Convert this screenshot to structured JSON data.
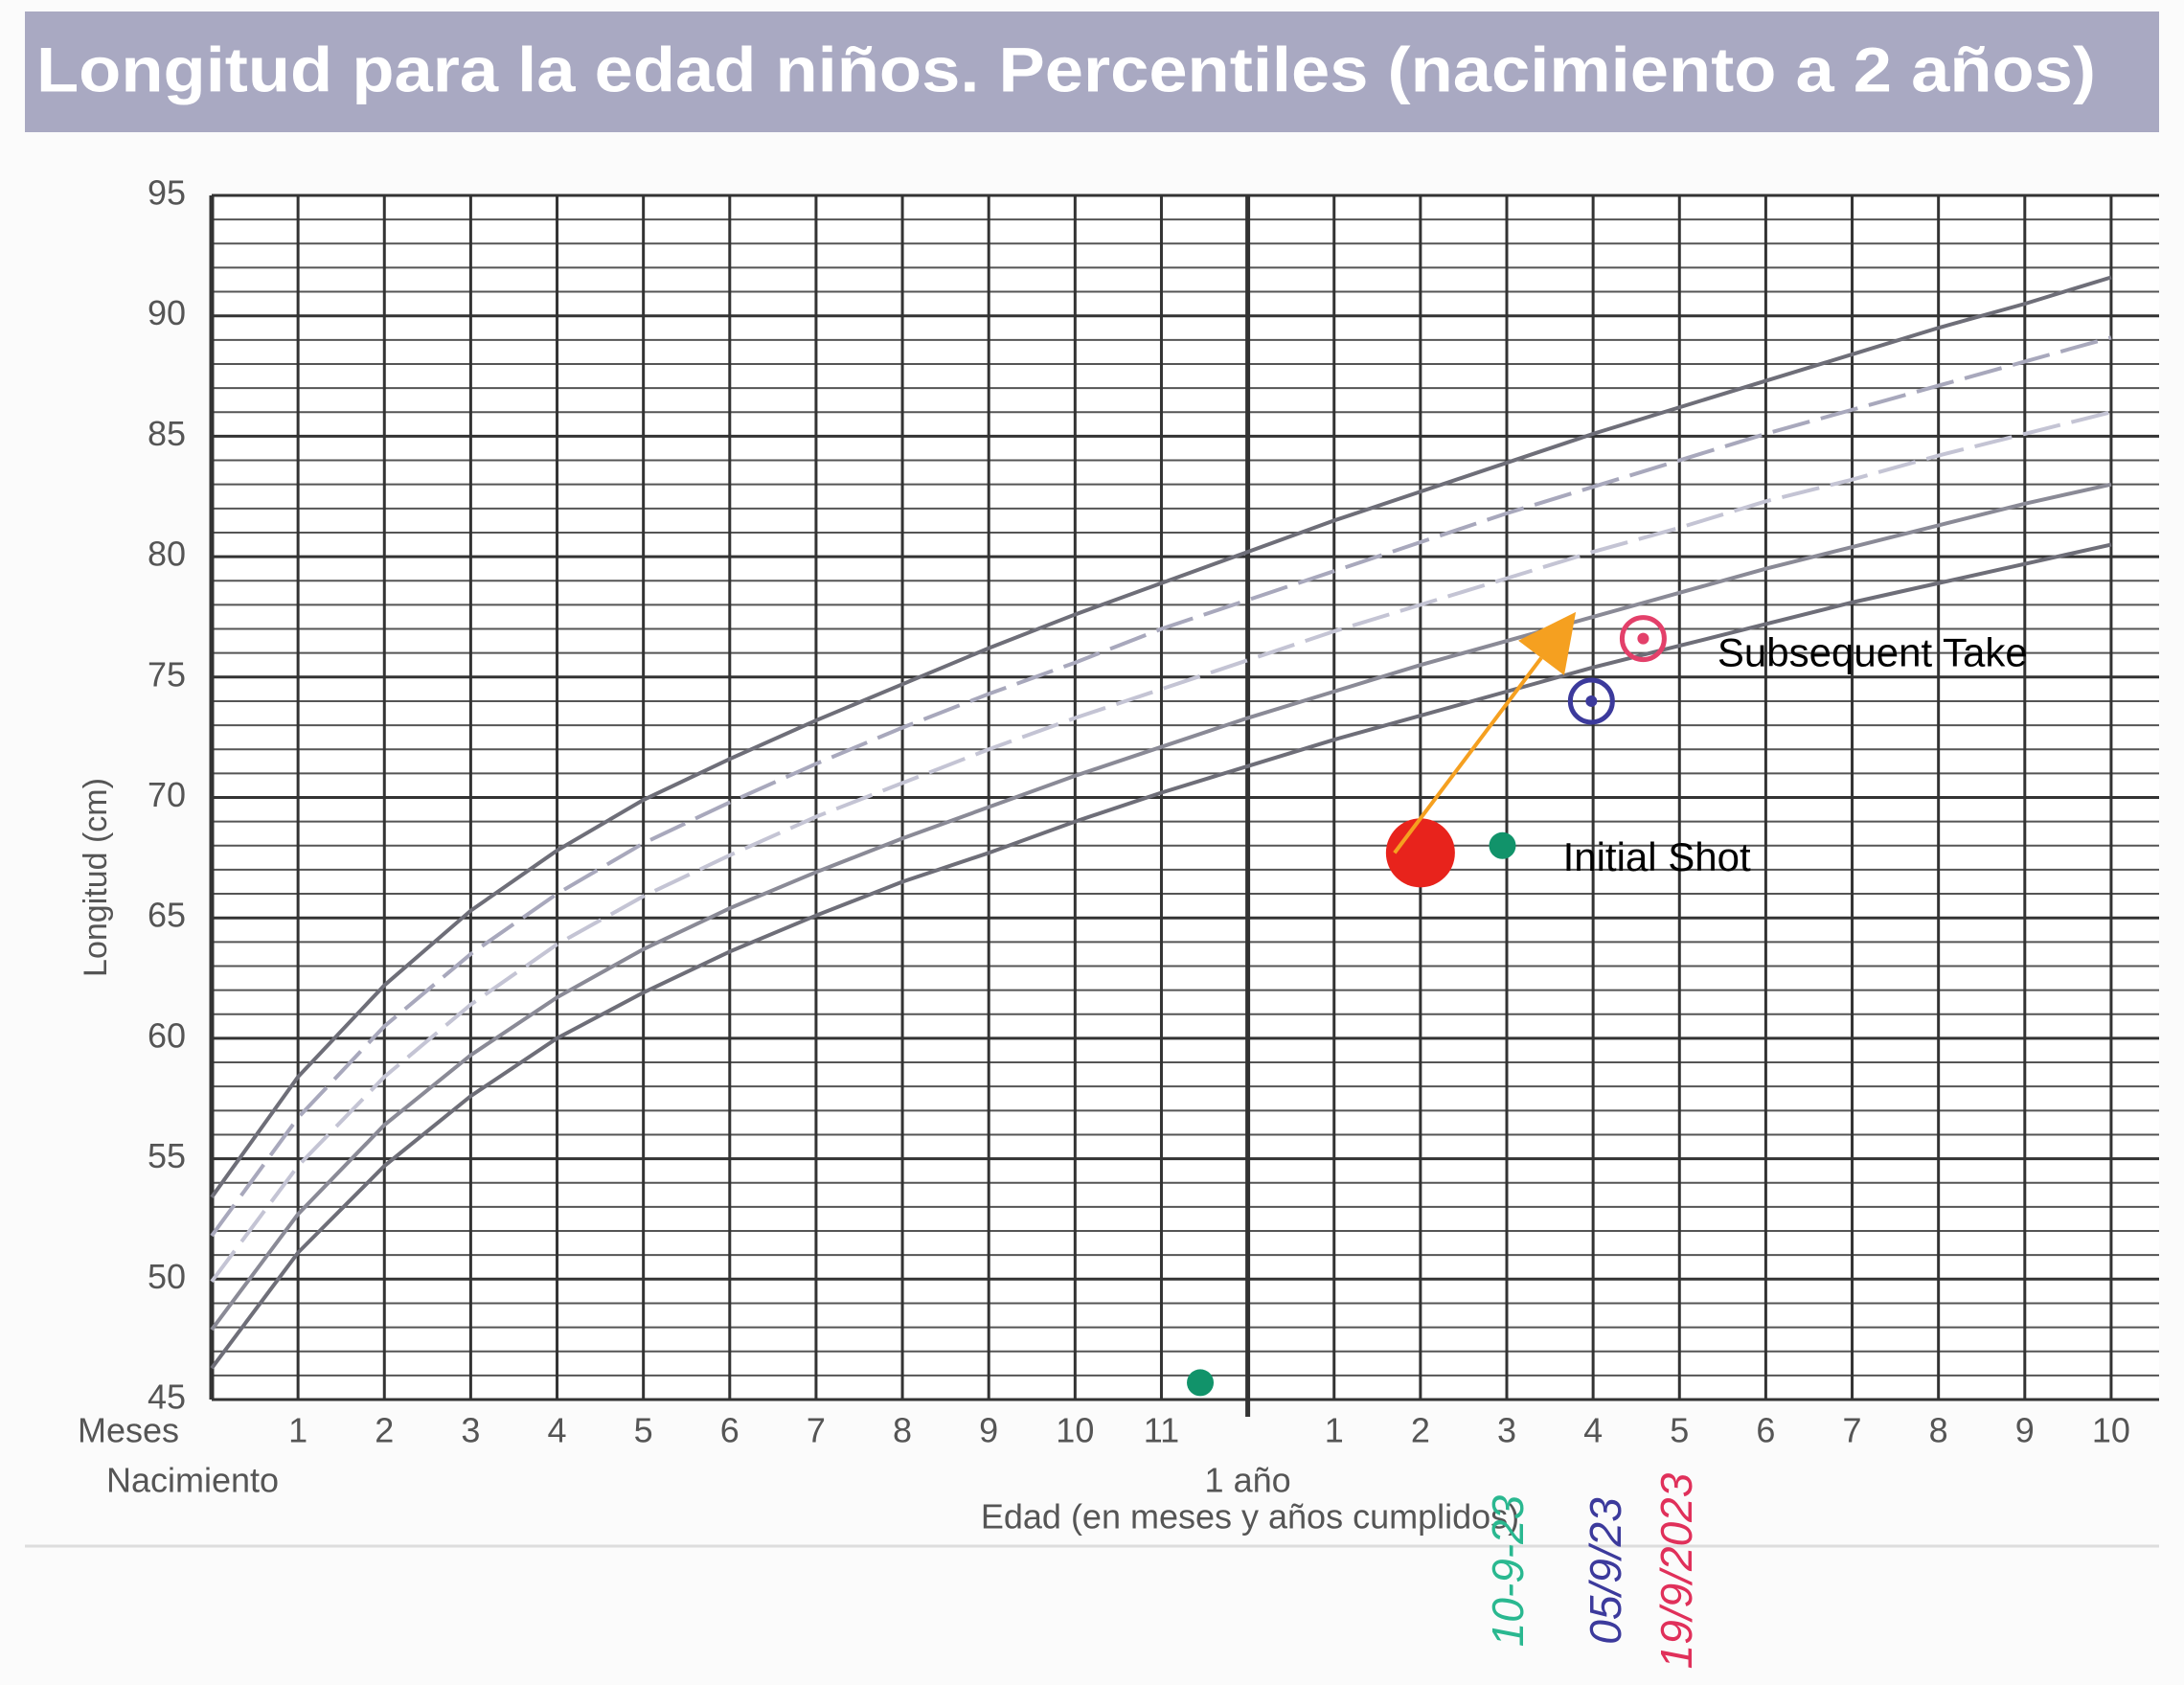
{
  "chart_data": {
    "type": "line",
    "title": "Longitud para la edad niños. Percentiles (nacimiento a 2 años)",
    "ylabel": "Longitud (cm)",
    "xlabel": "Edad (en meses y años cumplidos)",
    "x_row_label": "Meses",
    "x": [
      0,
      1,
      2,
      3,
      4,
      5,
      6,
      7,
      8,
      9,
      10,
      11,
      12,
      13,
      14,
      15,
      16,
      17,
      18,
      19,
      20,
      21,
      22
    ],
    "series": [
      {
        "color": "#6e6e78",
        "dash": false,
        "values": [
          53.4,
          58.4,
          62.2,
          65.3,
          67.8,
          69.9,
          71.6,
          73.2,
          74.7,
          76.2,
          77.6,
          78.9,
          80.2,
          81.5,
          82.7,
          83.9,
          85.1,
          86.2,
          87.3,
          88.4,
          89.5,
          90.5,
          91.6
        ]
      },
      {
        "color": "#a8a8bc",
        "dash": true,
        "values": [
          51.8,
          56.7,
          60.5,
          63.5,
          66.0,
          68.1,
          69.8,
          71.4,
          72.9,
          74.3,
          75.6,
          77.0,
          78.2,
          79.4,
          80.6,
          81.8,
          82.9,
          84.0,
          85.1,
          86.1,
          87.1,
          88.1,
          89.1
        ]
      },
      {
        "color": "#c4c4d4",
        "dash": true,
        "values": [
          49.9,
          54.7,
          58.4,
          61.4,
          63.9,
          65.9,
          67.6,
          69.2,
          70.6,
          72.0,
          73.3,
          74.5,
          75.7,
          76.9,
          78.0,
          79.1,
          80.2,
          81.2,
          82.3,
          83.2,
          84.2,
          85.1,
          86.0
        ]
      },
      {
        "color": "#8a8a96",
        "dash": false,
        "values": [
          47.9,
          52.7,
          56.4,
          59.3,
          61.7,
          63.7,
          65.4,
          66.9,
          68.3,
          69.6,
          70.9,
          72.1,
          73.3,
          74.4,
          75.5,
          76.5,
          77.5,
          78.5,
          79.5,
          80.4,
          81.3,
          82.2,
          83.0
        ]
      },
      {
        "color": "#6e6e78",
        "dash": false,
        "values": [
          46.3,
          51.1,
          54.7,
          57.6,
          60.0,
          61.9,
          63.6,
          65.1,
          66.5,
          67.7,
          69.0,
          70.2,
          71.3,
          72.4,
          73.4,
          74.4,
          75.4,
          76.3,
          77.2,
          78.1,
          78.9,
          79.7,
          80.5
        ]
      }
    ],
    "xlim": [
      0,
      22.5
    ],
    "ylim": [
      45,
      95
    ],
    "yticks": [
      45,
      50,
      55,
      60,
      65,
      70,
      75,
      80,
      85,
      90,
      95
    ],
    "yminor_ticks": [
      46,
      47,
      48,
      49,
      51,
      52,
      53,
      54,
      56,
      57,
      58,
      59,
      61,
      62,
      63,
      64,
      66,
      67,
      68,
      69,
      71,
      72,
      73,
      74,
      76,
      77,
      78,
      79,
      81,
      82,
      83,
      84,
      86,
      87,
      88,
      89,
      91,
      92,
      93,
      94
    ],
    "xticks": [
      {
        "value": 0,
        "label": "Nacimiento"
      },
      1,
      2,
      3,
      4,
      5,
      6,
      7,
      8,
      9,
      10,
      11,
      {
        "value": 12,
        "label": "1 año"
      },
      {
        "value": 13,
        "label": "1"
      },
      {
        "value": 14,
        "label": "2"
      },
      {
        "value": 15,
        "label": "3"
      },
      {
        "value": 16,
        "label": "4"
      },
      {
        "value": 17,
        "label": "5"
      },
      {
        "value": 18,
        "label": "6"
      },
      {
        "value": 19,
        "label": "7"
      },
      {
        "value": 20,
        "label": "8"
      },
      {
        "value": 21,
        "label": "9"
      },
      {
        "value": 22,
        "label": "10"
      }
    ],
    "grid": true,
    "points": [
      {
        "x": 14,
        "y": 67.7,
        "color": "#e8231c",
        "marker": "large-dot"
      },
      {
        "x": 14.95,
        "y": 68,
        "color": "#11936a",
        "marker": "dot"
      },
      {
        "x": 11.45,
        "y": 45.7,
        "color": "#11936a",
        "marker": "dot"
      },
      {
        "x": 15.98,
        "y": 74,
        "color": "#3c3a9c",
        "marker": "ring"
      },
      {
        "x": 16.58,
        "y": 76.6,
        "color": "#e3406a",
        "marker": "ring"
      }
    ],
    "arrows": [
      {
        "x": 13.7,
        "y": 67.7,
        "x2": 15.8,
        "y2": 77.7,
        "color": "#f5a020"
      }
    ],
    "annotations": [
      {
        "text": "Initial Shot",
        "x": 15.65,
        "y": 67.4
      },
      {
        "text": "Subsequent Take",
        "x": 17.44,
        "y": 75.9
      }
    ],
    "handwritten": [
      {
        "text": "10-9-23",
        "color": "#2ab890"
      },
      {
        "text": "05/9/23",
        "color": "#3c3a9c"
      },
      {
        "text": "19/9/2023",
        "color": "#e0305a"
      }
    ]
  }
}
